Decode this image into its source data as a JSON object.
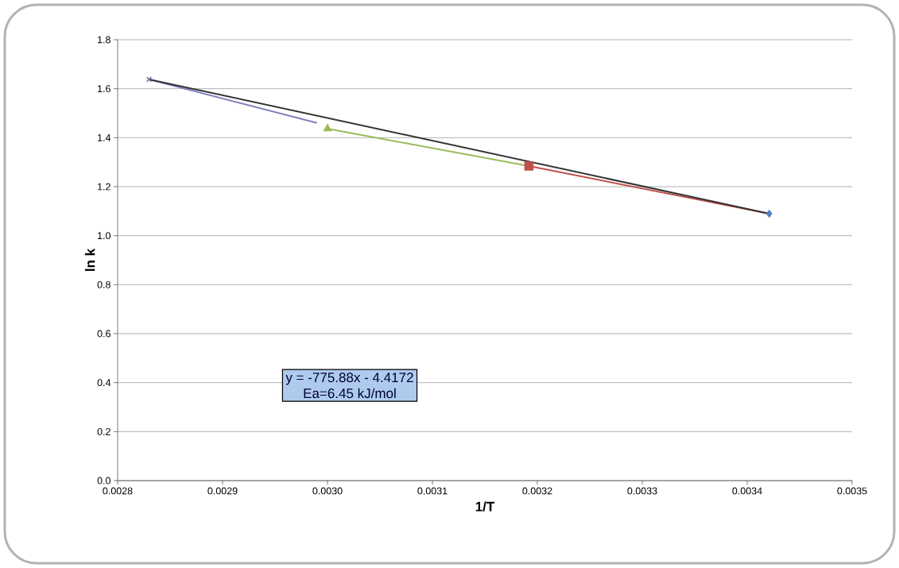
{
  "chart_data": {
    "type": "line",
    "xlabel": "1/T",
    "ylabel": "ln k",
    "annotations": [
      "y = -775.88x - 4.4172",
      "Ea=6.45 kJ/mol"
    ],
    "xlim": [
      0.0028,
      0.0035
    ],
    "xticks": [
      0.0028,
      0.0029,
      {
        "value": 0.003,
        "label": "0.0030"
      },
      0.0031,
      0.0032,
      0.0033,
      0.0034,
      0.0035
    ],
    "ylim": [
      0,
      1.8
    ],
    "yticks": [
      {
        "value": 0,
        "label": "0.0"
      },
      {
        "value": 0.2,
        "label": "0.2"
      },
      {
        "value": 0.4,
        "label": "0.4"
      },
      {
        "value": 0.6,
        "label": "0.6"
      },
      {
        "value": 0.8,
        "label": "0.8"
      },
      {
        "value": 1.0,
        "label": "1.0"
      },
      {
        "value": 1.2,
        "label": "1.2"
      },
      {
        "value": 1.4,
        "label": "1.4"
      },
      {
        "value": 1.6,
        "label": "1.6"
      },
      {
        "value": 1.8,
        "label": "1.8"
      }
    ],
    "grid": "y",
    "series": [
      {
        "color": "#8080c0",
        "x": [
          0.00283,
          0.00299
        ],
        "values": [
          1.638,
          1.46
        ],
        "marker": "none"
      },
      {
        "color": "#9bbb59",
        "x": [
          0.003,
          0.003192
        ],
        "values": [
          1.437,
          1.284
        ],
        "marker": "none"
      },
      {
        "color": "#c0504d",
        "x": [
          0.003192,
          0.003421
        ],
        "values": [
          1.284,
          1.09
        ],
        "marker": "none"
      },
      {
        "color": "#333333",
        "x": [
          0.00283,
          0.003421
        ],
        "values": [
          1.638,
          1.09
        ],
        "marker": "none"
      },
      {
        "type": "scatter",
        "color": "#8064a2",
        "x": [
          0.00283
        ],
        "values": [
          1.638
        ],
        "marker": "cross"
      },
      {
        "type": "scatter",
        "color": "#9bbb59",
        "x": [
          0.003
        ],
        "values": [
          1.437
        ],
        "marker": "triangle"
      },
      {
        "type": "scatter",
        "color": "#c0504d",
        "x": [
          0.003192
        ],
        "values": [
          1.284
        ],
        "marker": "square"
      },
      {
        "type": "scatter",
        "color": "#4f81bd",
        "x": [
          0.003421
        ],
        "values": [
          1.09
        ],
        "marker": "diamond"
      }
    ]
  }
}
